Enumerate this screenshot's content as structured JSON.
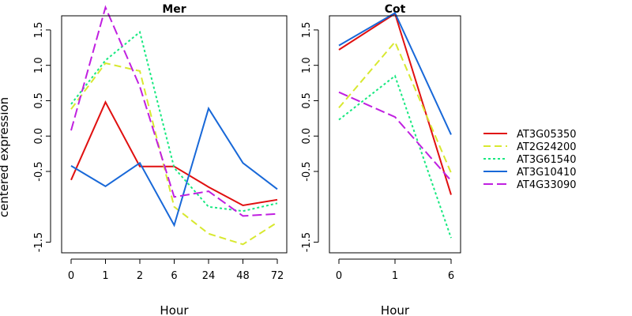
{
  "figure": {
    "ylabel": "centered expression"
  },
  "chart_data": [
    {
      "type": "line",
      "title": "Mer",
      "xlabel": "Hour",
      "ylabel": "centered expression",
      "categories": [
        "0",
        "1",
        "2",
        "6",
        "24",
        "48",
        "72"
      ],
      "ylim": [
        -1.65,
        1.7
      ],
      "yticks": [
        "-1.5",
        "-0.5",
        "0.0",
        "0.5",
        "1.0",
        "1.5"
      ],
      "grid": false,
      "series": [
        {
          "name": "AT3G05350",
          "values": [
            -0.62,
            0.48,
            -0.43,
            -0.43,
            -0.72,
            -0.98,
            -0.9
          ]
        },
        {
          "name": "AT2G24200",
          "values": [
            0.38,
            1.03,
            0.92,
            -1.0,
            -1.38,
            -1.53,
            -1.22
          ]
        },
        {
          "name": "AT3G61540",
          "values": [
            0.45,
            1.07,
            1.47,
            -0.45,
            -1.0,
            -1.06,
            -0.95
          ]
        },
        {
          "name": "AT3G10410",
          "values": [
            -0.42,
            -0.71,
            -0.38,
            -1.26,
            0.39,
            -0.38,
            -0.75
          ]
        },
        {
          "name": "AT4G33090",
          "values": [
            0.08,
            1.82,
            0.7,
            -0.86,
            -0.78,
            -1.13,
            -1.1
          ]
        }
      ]
    },
    {
      "type": "line",
      "title": "Cot",
      "xlabel": "Hour",
      "categories": [
        "0",
        "1",
        "6"
      ],
      "ylim": [
        -1.65,
        1.7
      ],
      "yticks": [
        "-1.5",
        "-0.5",
        "0.0",
        "0.5",
        "1.0",
        "1.5"
      ],
      "grid": false,
      "series": [
        {
          "name": "AT3G05350",
          "values": [
            1.22,
            1.73,
            -0.83
          ]
        },
        {
          "name": "AT2G24200",
          "values": [
            0.4,
            1.33,
            -0.52
          ]
        },
        {
          "name": "AT3G61540",
          "values": [
            0.23,
            0.85,
            -1.44
          ]
        },
        {
          "name": "AT3G10410",
          "values": [
            1.28,
            1.74,
            0.02
          ]
        },
        {
          "name": "AT4G33090",
          "values": [
            0.62,
            0.27,
            -0.63
          ]
        }
      ]
    }
  ],
  "legend": {
    "placement": "right",
    "entries": [
      {
        "name": "AT3G05350",
        "color": "#e01010",
        "dash": "solid"
      },
      {
        "name": "AT2G24200",
        "color": "#d8e830",
        "dash": "dashed"
      },
      {
        "name": "AT3G61540",
        "color": "#18e880",
        "dash": "dotted"
      },
      {
        "name": "AT3G10410",
        "color": "#1868d8",
        "dash": "solid"
      },
      {
        "name": "AT4G33090",
        "color": "#c020e0",
        "dash": "longdash"
      }
    ]
  }
}
